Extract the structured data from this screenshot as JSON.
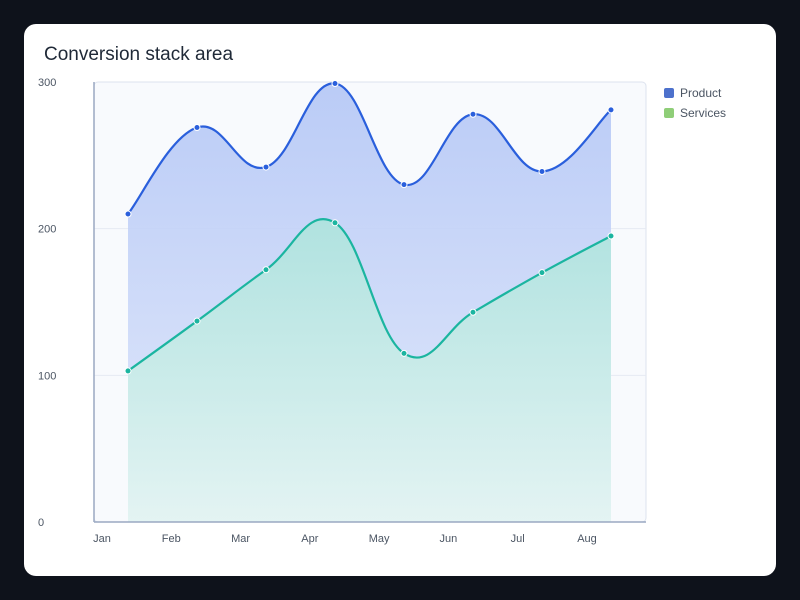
{
  "chart_data": {
    "type": "area",
    "title": "Conversion stack area",
    "categories": [
      "Jan",
      "Feb",
      "Mar",
      "Apr",
      "May",
      "Jun",
      "Jul",
      "Aug"
    ],
    "ylim": [
      0,
      300
    ],
    "yticks": [
      0,
      100,
      200,
      300
    ],
    "grid": true,
    "legend_position": "top-right",
    "series": [
      {
        "name": "Product",
        "values": [
          210,
          269,
          242,
          299,
          230,
          278,
          239,
          281
        ],
        "color": "#2a5fdc",
        "legend_color": "#4d71cc"
      },
      {
        "name": "Services",
        "values": [
          103,
          137,
          172,
          204,
          115,
          143,
          170,
          195
        ],
        "color": "#1bb5a0",
        "legend_color": "#8fce78"
      }
    ]
  }
}
